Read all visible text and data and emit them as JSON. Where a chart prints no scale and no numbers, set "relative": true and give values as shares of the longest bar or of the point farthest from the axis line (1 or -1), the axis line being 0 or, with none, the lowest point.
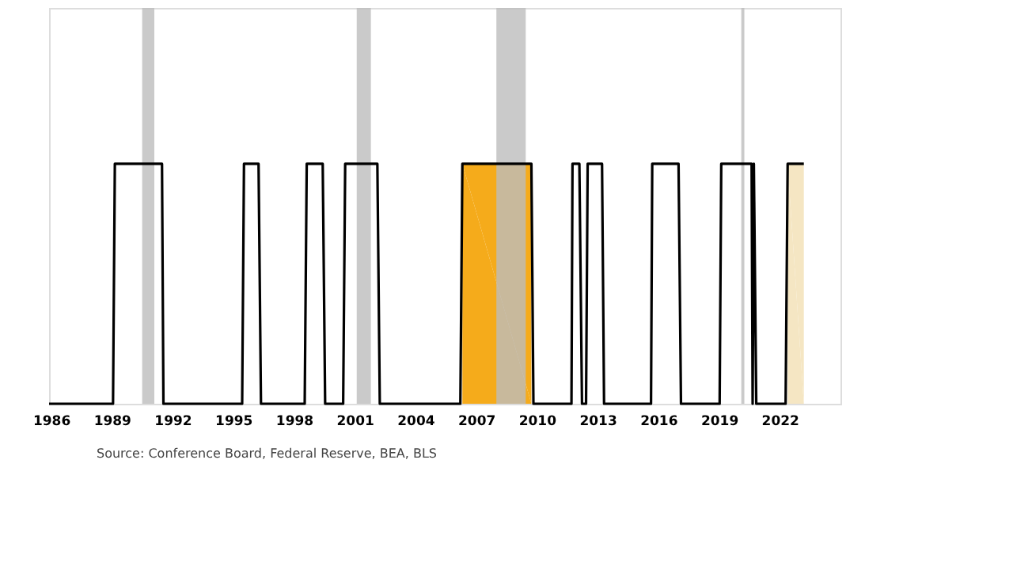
{
  "chart_data": {
    "type": "line",
    "relative": true,
    "xlim": [
      1985.9,
      2025
    ],
    "xticks": [
      1986,
      1989,
      1992,
      1995,
      1998,
      2001,
      2004,
      2007,
      2010,
      2013,
      2016,
      2019,
      2022
    ],
    "series": [
      {
        "type": "area",
        "color": "#f5ab1b",
        "x": [
          2006.32,
          2009.73
        ],
        "values": [
          1,
          1
        ]
      },
      {
        "type": "area",
        "color": "#f5e6c3",
        "x": [
          2022.39,
          2023.19
        ],
        "values": [
          1,
          1
        ]
      },
      {
        "color": "#000000",
        "x": [
          1985.9,
          1989.06,
          1989.15,
          1991.48,
          1991.55,
          1995.44,
          1995.53,
          1996.25,
          1996.37,
          1998.53,
          1998.63,
          1999.42,
          1999.54,
          2000.43,
          2000.53,
          2002.12,
          2002.24,
          2006.22,
          2006.32,
          2009.73,
          2009.83,
          2011.71,
          2011.76,
          2012.1,
          2012.23,
          2012.43,
          2012.51,
          2013.22,
          2013.32,
          2015.64,
          2015.7,
          2017.0,
          2017.12,
          2019.03,
          2019.11,
          2020.61,
          2020.66,
          2020.72,
          2020.84,
          2022.29,
          2022.39,
          2023.19
        ],
        "values": [
          0,
          0,
          1,
          1,
          0,
          0,
          1,
          1,
          0,
          0,
          1,
          1,
          0,
          0,
          1,
          1,
          0,
          0,
          1,
          1,
          0,
          0,
          1,
          1,
          0,
          0,
          1,
          1,
          0,
          0,
          1,
          1,
          0,
          0,
          1,
          1,
          0,
          1,
          0,
          0,
          1,
          1
        ]
      }
    ],
    "bands": [
      {
        "axis": "x",
        "from": 1990.5,
        "to": 1991.1,
        "color": "#bdbdbd"
      },
      {
        "axis": "x",
        "from": 2001.1,
        "to": 2001.8,
        "color": "#bdbdbd"
      },
      {
        "axis": "x",
        "from": 2008.0,
        "to": 2009.45,
        "color": "#bdbdbd"
      },
      {
        "axis": "x",
        "from": 2020.1,
        "to": 2020.25,
        "color": "#bdbdbd"
      }
    ],
    "grid": false,
    "annotations": [
      "Source: Conference Board, Federal Reserve, BEA, BLS"
    ]
  }
}
